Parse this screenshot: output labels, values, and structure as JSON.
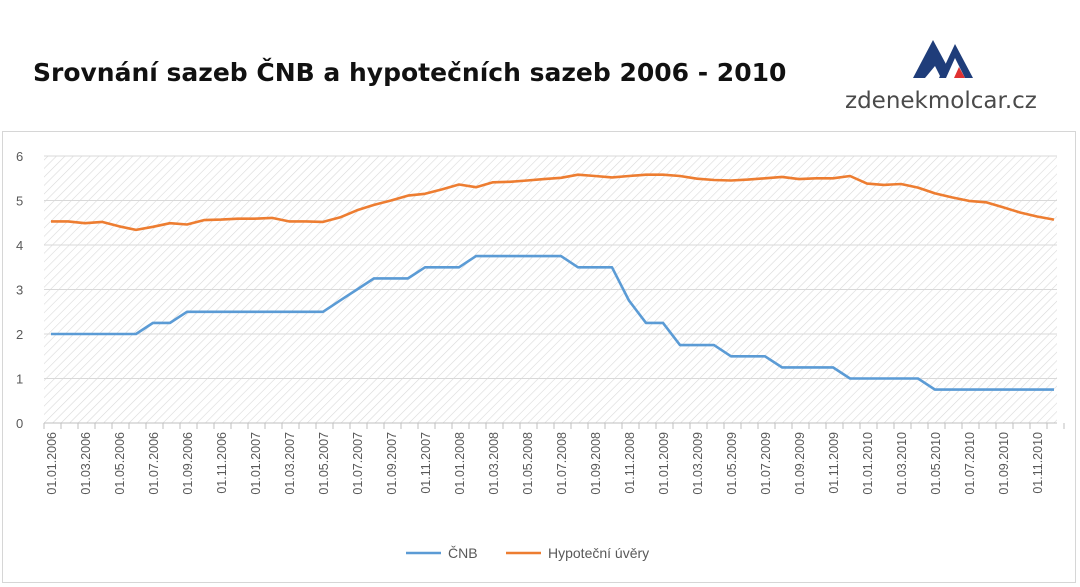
{
  "header": {
    "title": "Srovnání sazeb ČNB a hypotečních sazeb 2006 - 2010",
    "brand_text": "zdenekmolcar.cz",
    "logo_icon": "mountain-logo-icon"
  },
  "colors": {
    "cnb": "#5b9bd5",
    "hypo": "#ed7d31",
    "logo_navy": "#1f3d7a",
    "logo_red": "#e03131"
  },
  "chart_data": {
    "type": "line",
    "title": "",
    "xlabel": "",
    "ylabel": "",
    "ylim": [
      0,
      6
    ],
    "yticks": [
      "0",
      "1",
      "2",
      "3",
      "4",
      "5",
      "6"
    ],
    "grid": "horizontal",
    "legend_position": "bottom",
    "x": [
      "01.01.2006",
      "01.02.2006",
      "01.03.2006",
      "01.04.2006",
      "01.05.2006",
      "01.06.2006",
      "01.07.2006",
      "01.08.2006",
      "01.09.2006",
      "01.10.2006",
      "01.11.2006",
      "01.12.2006",
      "01.01.2007",
      "01.02.2007",
      "01.03.2007",
      "01.04.2007",
      "01.05.2007",
      "01.06.2007",
      "01.07.2007",
      "01.08.2007",
      "01.09.2007",
      "01.10.2007",
      "01.11.2007",
      "01.12.2007",
      "01.01.2008",
      "01.02.2008",
      "01.03.2008",
      "01.04.2008",
      "01.05.2008",
      "01.06.2008",
      "01.07.2008",
      "01.08.2008",
      "01.09.2008",
      "01.10.2008",
      "01.11.2008",
      "01.12.2008",
      "01.01.2009",
      "01.02.2009",
      "01.03.2009",
      "01.04.2009",
      "01.05.2009",
      "01.06.2009",
      "01.07.2009",
      "01.08.2009",
      "01.09.2009",
      "01.10.2009",
      "01.11.2009",
      "01.12.2009",
      "01.01.2010",
      "01.02.2010",
      "01.03.2010",
      "01.04.2010",
      "01.05.2010",
      "01.06.2010",
      "01.07.2010",
      "01.08.2010",
      "01.09.2010",
      "01.10.2010",
      "01.11.2010",
      "01.12.2010"
    ],
    "xticks": [
      "01.01.2006",
      "01.03.2006",
      "01.05.2006",
      "01.07.2006",
      "01.09.2006",
      "01.11.2006",
      "01.01.2007",
      "01.03.2007",
      "01.05.2007",
      "01.07.2007",
      "01.09.2007",
      "01.11.2007",
      "01.01.2008",
      "01.03.2008",
      "01.05.2008",
      "01.07.2008",
      "01.09.2008",
      "01.11.2008",
      "01.01.2009",
      "01.03.2009",
      "01.05.2009",
      "01.07.2009",
      "01.09.2009",
      "01.11.2009",
      "01.01.2010",
      "01.03.2010",
      "01.05.2010",
      "01.07.2010",
      "01.09.2010",
      "01.11.2010"
    ],
    "series": [
      {
        "name": "ČNB",
        "values": [
          2,
          2,
          2,
          2,
          2,
          2,
          2.25,
          2.25,
          2.5,
          2.5,
          2.5,
          2.5,
          2.5,
          2.5,
          2.5,
          2.5,
          2.5,
          2.75,
          3,
          3.25,
          3.25,
          3.25,
          3.5,
          3.5,
          3.5,
          3.75,
          3.75,
          3.75,
          3.75,
          3.75,
          3.75,
          3.5,
          3.5,
          3.5,
          2.75,
          2.25,
          2.25,
          1.75,
          1.75,
          1.75,
          1.5,
          1.5,
          1.5,
          1.25,
          1.25,
          1.25,
          1.25,
          1,
          1,
          1,
          1,
          1,
          0.75,
          0.75,
          0.75,
          0.75,
          0.75,
          0.75,
          0.75,
          0.75
        ]
      },
      {
        "name": "Hypoteční úvěry",
        "values": [
          4.53,
          4.53,
          4.49,
          4.52,
          4.42,
          4.34,
          4.41,
          4.49,
          4.46,
          4.56,
          4.57,
          4.59,
          4.59,
          4.61,
          4.53,
          4.53,
          4.52,
          4.62,
          4.78,
          4.9,
          5.0,
          5.11,
          5.15,
          5.25,
          5.36,
          5.3,
          5.41,
          5.42,
          5.45,
          5.48,
          5.51,
          5.58,
          5.55,
          5.52,
          5.55,
          5.58,
          5.58,
          5.55,
          5.49,
          5.46,
          5.45,
          5.47,
          5.5,
          5.53,
          5.48,
          5.5,
          5.5,
          5.55,
          5.38,
          5.35,
          5.37,
          5.29,
          5.16,
          5.07,
          4.99,
          4.96,
          4.85,
          4.73,
          4.64,
          4.57
        ]
      }
    ]
  }
}
